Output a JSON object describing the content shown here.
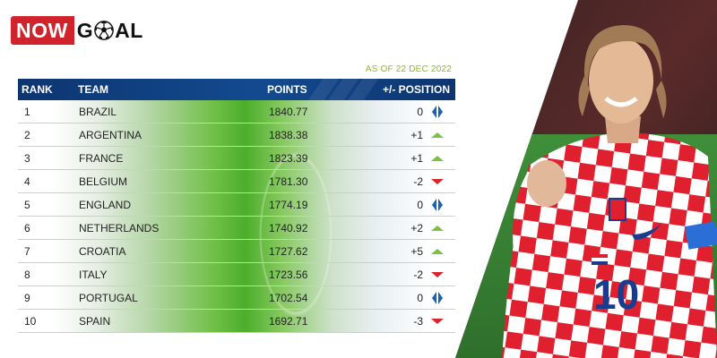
{
  "logo": {
    "part1": "NOW",
    "part2a": "G",
    "part2b": "AL",
    "icon": "soccer-ball-icon"
  },
  "as_of": "AS OF 22 DEC 2022",
  "headers": {
    "rank": "RANK",
    "team": "TEAM",
    "points": "POINTS",
    "position": "+/- POSITION"
  },
  "colors": {
    "header_bg": "#0f3a78",
    "up": "#7cc242",
    "down": "#d8262e",
    "same": "#1f5fae",
    "logo_red": "#d0232b",
    "date_green": "#8fbc1e"
  },
  "rows": [
    {
      "rank": "1",
      "team": "BRAZIL",
      "points": "1840.77",
      "change": "0",
      "trend": "same"
    },
    {
      "rank": "2",
      "team": "ARGENTINA",
      "points": "1838.38",
      "change": "+1",
      "trend": "up"
    },
    {
      "rank": "3",
      "team": "FRANCE",
      "points": "1823.39",
      "change": "+1",
      "trend": "up"
    },
    {
      "rank": "4",
      "team": "BELGIUM",
      "points": "1781.30",
      "change": "-2",
      "trend": "down"
    },
    {
      "rank": "5",
      "team": "ENGLAND",
      "points": "1774.19",
      "change": "0",
      "trend": "same"
    },
    {
      "rank": "6",
      "team": "NETHERLANDS",
      "points": "1740.92",
      "change": "+2",
      "trend": "up"
    },
    {
      "rank": "7",
      "team": "CROATIA",
      "points": "1727.62",
      "change": "+5",
      "trend": "up"
    },
    {
      "rank": "8",
      "team": "ITALY",
      "points": "1723.56",
      "change": "-2",
      "trend": "down"
    },
    {
      "rank": "9",
      "team": "PORTUGAL",
      "points": "1702.54",
      "change": "0",
      "trend": "same"
    },
    {
      "rank": "10",
      "team": "SPAIN",
      "points": "1692.71",
      "change": "-3",
      "trend": "down"
    }
  ],
  "player": {
    "jersey_number": "10"
  }
}
